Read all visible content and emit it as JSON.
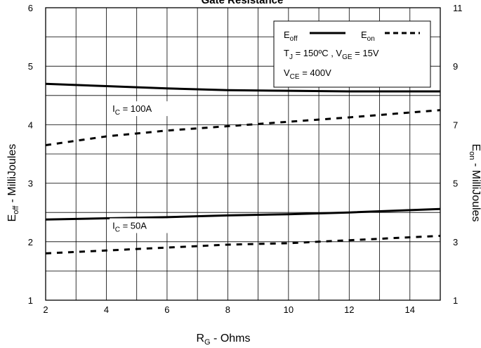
{
  "chart_data": {
    "type": "line",
    "title": "Gate Resistance",
    "xlabel": {
      "main": "R",
      "sub": "G",
      "rest": " - Ohms"
    },
    "ylabel_left": {
      "main": "E",
      "sub": "off",
      "rest": " - MilliJoules"
    },
    "ylabel_right": {
      "main": "E",
      "sub": "on",
      "rest": " - MilliJoules"
    },
    "xlim": [
      2,
      15
    ],
    "ylim_left": [
      1,
      6
    ],
    "ylim_right": [
      1,
      11
    ],
    "x_ticks": [
      "2",
      "4",
      "6",
      "8",
      "10",
      "12",
      "14"
    ],
    "y_left_ticks": [
      "1",
      "2",
      "3",
      "4",
      "5",
      "6"
    ],
    "y_right_ticks": [
      "1",
      "3",
      "5",
      "7",
      "9",
      "11"
    ],
    "grid": true,
    "legend": {
      "position": "top-right",
      "items": [
        {
          "main": "E",
          "sub": "off",
          "style": "solid"
        },
        {
          "main": "E",
          "sub": "on",
          "style": "dashed"
        }
      ],
      "conditions_line1": {
        "t": "T",
        "t_sub": "J",
        "t_val": " = 150ºC ,  V",
        "v_sub": "GE",
        "v_val": " = 15V"
      },
      "conditions_line2": {
        "v": "V",
        "v_sub": "CE",
        "v_val": " = 400V"
      }
    },
    "annotations": [
      {
        "pre": "I",
        "sub": "C",
        "post": " = 100A",
        "x": 4.2,
        "y": 4.22,
        "axis": "left"
      },
      {
        "pre": "I",
        "sub": "C",
        "post": " = 50A",
        "x": 4.2,
        "y": 2.22,
        "axis": "left"
      }
    ],
    "series": [
      {
        "name": "Eoff, IC = 100A",
        "axis": "left",
        "style": "solid",
        "x": [
          2,
          4,
          6,
          8,
          10,
          12,
          15
        ],
        "y": [
          4.7,
          4.66,
          4.62,
          4.59,
          4.58,
          4.57,
          4.57
        ]
      },
      {
        "name": "Eon, IC = 100A",
        "axis": "right",
        "style": "dashed",
        "x": [
          2,
          4,
          6,
          8,
          10,
          12,
          15
        ],
        "y": [
          6.3,
          6.6,
          6.8,
          6.95,
          7.1,
          7.25,
          7.5
        ]
      },
      {
        "name": "Eoff, IC = 50A",
        "axis": "left",
        "style": "solid",
        "x": [
          2,
          4,
          6,
          8,
          10,
          12,
          15
        ],
        "y": [
          2.38,
          2.4,
          2.42,
          2.45,
          2.47,
          2.5,
          2.56
        ]
      },
      {
        "name": "Eon, IC = 50A",
        "axis": "right",
        "style": "dashed",
        "x": [
          2,
          4,
          6,
          8,
          10,
          12,
          15
        ],
        "y": [
          2.6,
          2.7,
          2.8,
          2.9,
          2.95,
          3.05,
          3.2
        ]
      }
    ]
  }
}
